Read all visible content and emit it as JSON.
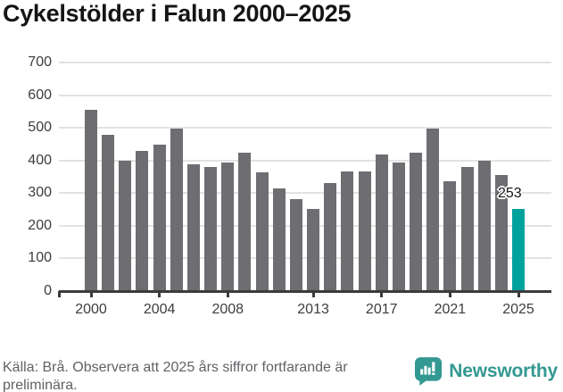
{
  "title": "Cykelstölder i Falun 2000–2025",
  "chart_data": {
    "type": "bar",
    "title": "Cykelstölder i Falun 2000–2025",
    "categories": [
      "2000",
      "2001",
      "2002",
      "2003",
      "2004",
      "2005",
      "2006",
      "2007",
      "2008",
      "2009",
      "2010",
      "2011",
      "2012",
      "2013",
      "2014",
      "2015",
      "2016",
      "2017",
      "2018",
      "2019",
      "2020",
      "2021",
      "2022",
      "2023",
      "2024",
      "2025"
    ],
    "values": [
      555,
      478,
      400,
      429,
      448,
      498,
      388,
      381,
      395,
      424,
      365,
      314,
      283,
      252,
      331,
      367,
      367,
      418,
      393,
      423,
      499,
      336,
      380,
      400,
      356,
      253
    ],
    "ylabel": "",
    "xlabel": "",
    "ylim": [
      0,
      700
    ],
    "yticks": [
      0,
      100,
      200,
      300,
      400,
      500,
      600,
      700
    ],
    "xtick_labels": [
      "2000",
      "2004",
      "2008",
      "2013",
      "2017",
      "2021",
      "2025"
    ],
    "grid": true,
    "legend": "none",
    "bar_color": "#6e6d72",
    "highlight_index": 25,
    "highlight_color": "#00a29b",
    "highlight_label": "253"
  },
  "footer": {
    "source_text": "Källa: Brå. Observera att 2025 års siffror fortfarande är preliminära.",
    "logo_text": "Newsworthy"
  },
  "colors": {
    "title": "#151515",
    "axis_text": "#3d3d3d",
    "grid": "#e2e2e2",
    "axis_line": "#3b3b3b",
    "source_text": "#5f6266",
    "logo": "#349892"
  }
}
